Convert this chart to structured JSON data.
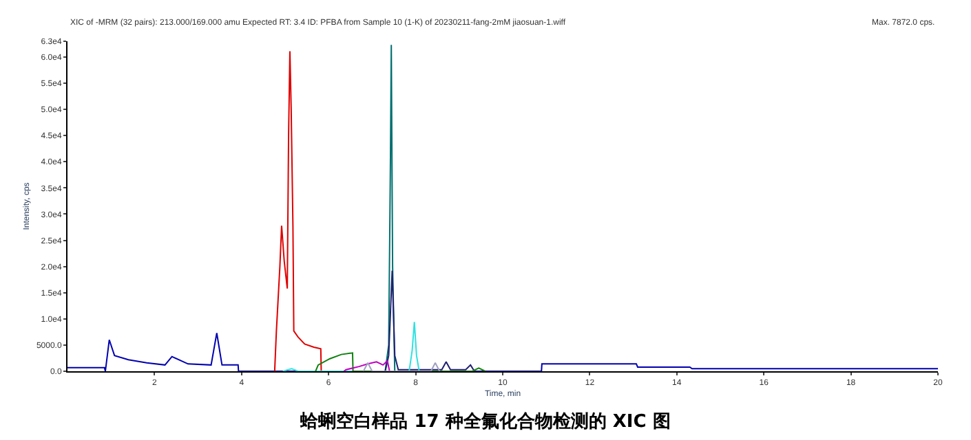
{
  "chart_data": {
    "type": "line",
    "title": "蛤蜊空白样品 17 种全氟化合物检测的 XIC 图",
    "xlabel": "Time, min",
    "ylabel": "Intensity, cps",
    "annotations": [
      "XIC of -MRM (32 pairs): 213.000/169.000 amu Expected RT: 3.4 ID: PFBA from Sample 10 (1-K) of 20230211-fang-2mM jiaosuan-1.wiff",
      "Max. 7872.0 cps."
    ],
    "xlim": [
      0,
      20
    ],
    "xticks": [
      2,
      4,
      6,
      8,
      10,
      12,
      14,
      16,
      18,
      20
    ],
    "ylim": [
      0,
      63000
    ],
    "yticks": [
      {
        "value": 0,
        "label": "0.0"
      },
      {
        "value": 5000,
        "label": "5000.0"
      },
      {
        "value": 10000,
        "label": "1.0e4"
      },
      {
        "value": 15000,
        "label": "1.5e4"
      },
      {
        "value": 20000,
        "label": "2.0e4"
      },
      {
        "value": 25000,
        "label": "2.5e4"
      },
      {
        "value": 30000,
        "label": "3.0e4"
      },
      {
        "value": 35000,
        "label": "3.5e4"
      },
      {
        "value": 40000,
        "label": "4.0e4"
      },
      {
        "value": 45000,
        "label": "4.5e4"
      },
      {
        "value": 50000,
        "label": "5.0e4"
      },
      {
        "value": 55000,
        "label": "5.5e4"
      },
      {
        "value": 60000,
        "label": "6.0e4"
      },
      {
        "value": 63000,
        "label": "6.3e4"
      }
    ],
    "marker": "none",
    "line_style": "solid",
    "series": [
      {
        "color": "#0000b0",
        "x": [
          0,
          0.4,
          0.85,
          0.87,
          0.96,
          1.08,
          1.4,
          1.82,
          2.24,
          2.4,
          2.77,
          3.3,
          3.43,
          3.55,
          3.92,
          3.93,
          10.89,
          10.9,
          13.07,
          13.1,
          14.3,
          14.35,
          20
        ],
        "values": [
          700,
          700,
          700,
          0,
          6000,
          3000,
          2200,
          1600,
          1200,
          2800,
          1400,
          1200,
          7300,
          1200,
          1200,
          0,
          0,
          1400,
          1400,
          800,
          800,
          500,
          500
        ]
      },
      {
        "color": "#e00000",
        "x": [
          4.76,
          4.8,
          4.88,
          4.92,
          4.98,
          5.05,
          5.08,
          5.11,
          5.14,
          5.18,
          5.2,
          5.3,
          5.45,
          5.66,
          5.82,
          5.83
        ],
        "values": [
          0,
          7700,
          20000,
          27800,
          21000,
          15800,
          45000,
          61100,
          50000,
          27600,
          7700,
          6500,
          5200,
          4600,
          4300,
          0
        ]
      },
      {
        "color": "#007070",
        "x": [
          7.3,
          7.38,
          7.42,
          7.44,
          7.47,
          7.52
        ],
        "values": [
          0,
          5000,
          40000,
          62300,
          20000,
          0
        ]
      },
      {
        "color": "#202070",
        "x": [
          7.3,
          7.38,
          7.46,
          7.52,
          7.6,
          8.6,
          8.7,
          8.8,
          9.15,
          9.26,
          9.35
        ],
        "values": [
          0,
          3000,
          19200,
          3000,
          300,
          300,
          1800,
          300,
          300,
          1200,
          0
        ]
      },
      {
        "color": "#30e0e0",
        "x": [
          4.95,
          5.15,
          5.3,
          7.85,
          7.92,
          7.97,
          8.02,
          8.08
        ],
        "values": [
          0,
          500,
          0,
          0,
          4000,
          9400,
          3000,
          0
        ]
      },
      {
        "color": "#108010",
        "x": [
          5.7,
          5.76,
          6.03,
          6.29,
          6.55,
          6.56,
          9.3,
          9.45,
          9.6
        ],
        "values": [
          0,
          1200,
          2400,
          3200,
          3500,
          0,
          0,
          600,
          0
        ]
      },
      {
        "color": "#c000c0",
        "x": [
          6.35,
          6.4,
          6.7,
          6.9,
          7.1,
          7.25,
          7.35,
          7.4
        ],
        "values": [
          0,
          300,
          900,
          1400,
          1800,
          1200,
          2000,
          0
        ]
      },
      {
        "color": "#a0a0c0",
        "x": [
          6.8,
          6.9,
          7.0,
          8.35,
          8.45,
          8.55
        ],
        "values": [
          0,
          1600,
          0,
          0,
          1600,
          0
        ]
      }
    ]
  }
}
